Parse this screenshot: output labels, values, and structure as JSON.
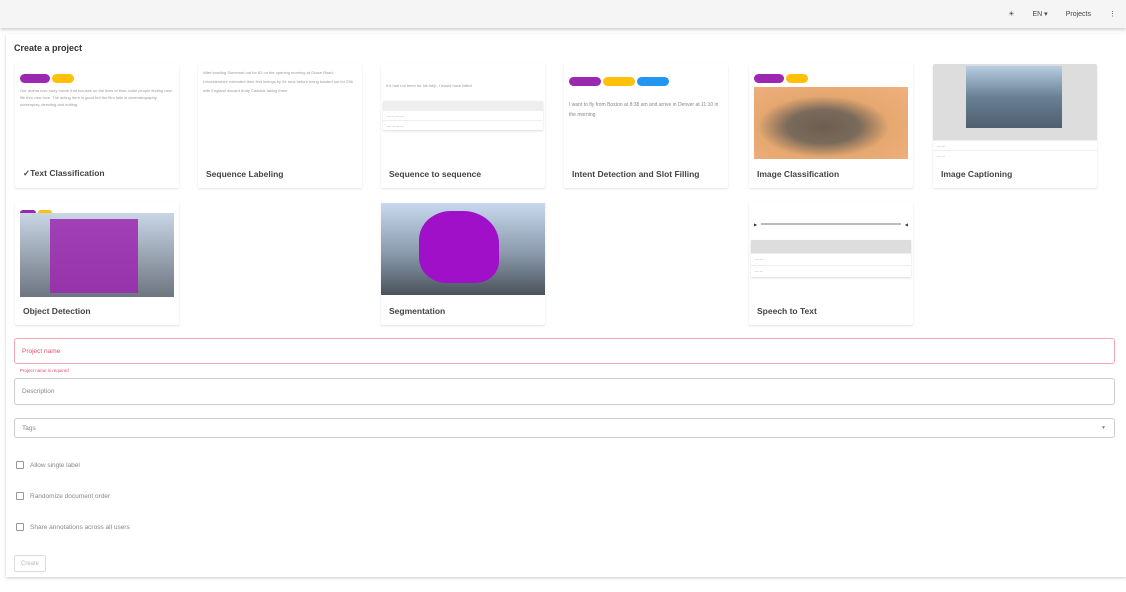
{
  "header": {
    "theme_icon": "brightness-icon",
    "language": "EN",
    "projects_label": "Projects",
    "menu_icon": "dots-vertical-icon"
  },
  "page": {
    "title": "Create a project"
  },
  "project_types": [
    {
      "label": "✓Text Classification",
      "preview_text": "Our drama love story movie that focuses on the lives of blue-collar people finding new life thru new love. The acting here is good but the film fails in cinematography, screenplay, directing and editing."
    },
    {
      "label": "Sequence Labeling",
      "preview_text": "After bowling Somerset out for 83 on the opening morning at Grace Road, Leicestershire extended their first innings by 94 runs before being bowled out for 296 with England discard Andy Caddick taking three"
    },
    {
      "label": "Sequence to sequence",
      "preview_text": "If it had not been for his help, I would have failed"
    },
    {
      "label": "Intent Detection and Slot Filling",
      "preview_text": "I want to fly from Boston at 8:38 am and arrive in Denver at 11:10 in the morning"
    },
    {
      "label": "Image Classification"
    },
    {
      "label": "Image Captioning"
    },
    {
      "label": "Object Detection"
    },
    {
      "label": "Segmentation"
    },
    {
      "label": "Speech to Text"
    }
  ],
  "form": {
    "project_name_placeholder": "Project name",
    "project_name_error": "Project name is required",
    "description_placeholder": "Description",
    "tags_placeholder": "Tags",
    "checkboxes": [
      {
        "label": "Allow single label",
        "checked": false
      },
      {
        "label": "Randomize document order",
        "checked": false
      },
      {
        "label": "Share annotations across all users",
        "checked": false
      }
    ],
    "create_label": "Create"
  },
  "colors": {
    "accent_purple": "#9c27b0",
    "chip_yellow": "#ffc107",
    "chip_blue": "#2196f3",
    "error": "#e05070"
  }
}
